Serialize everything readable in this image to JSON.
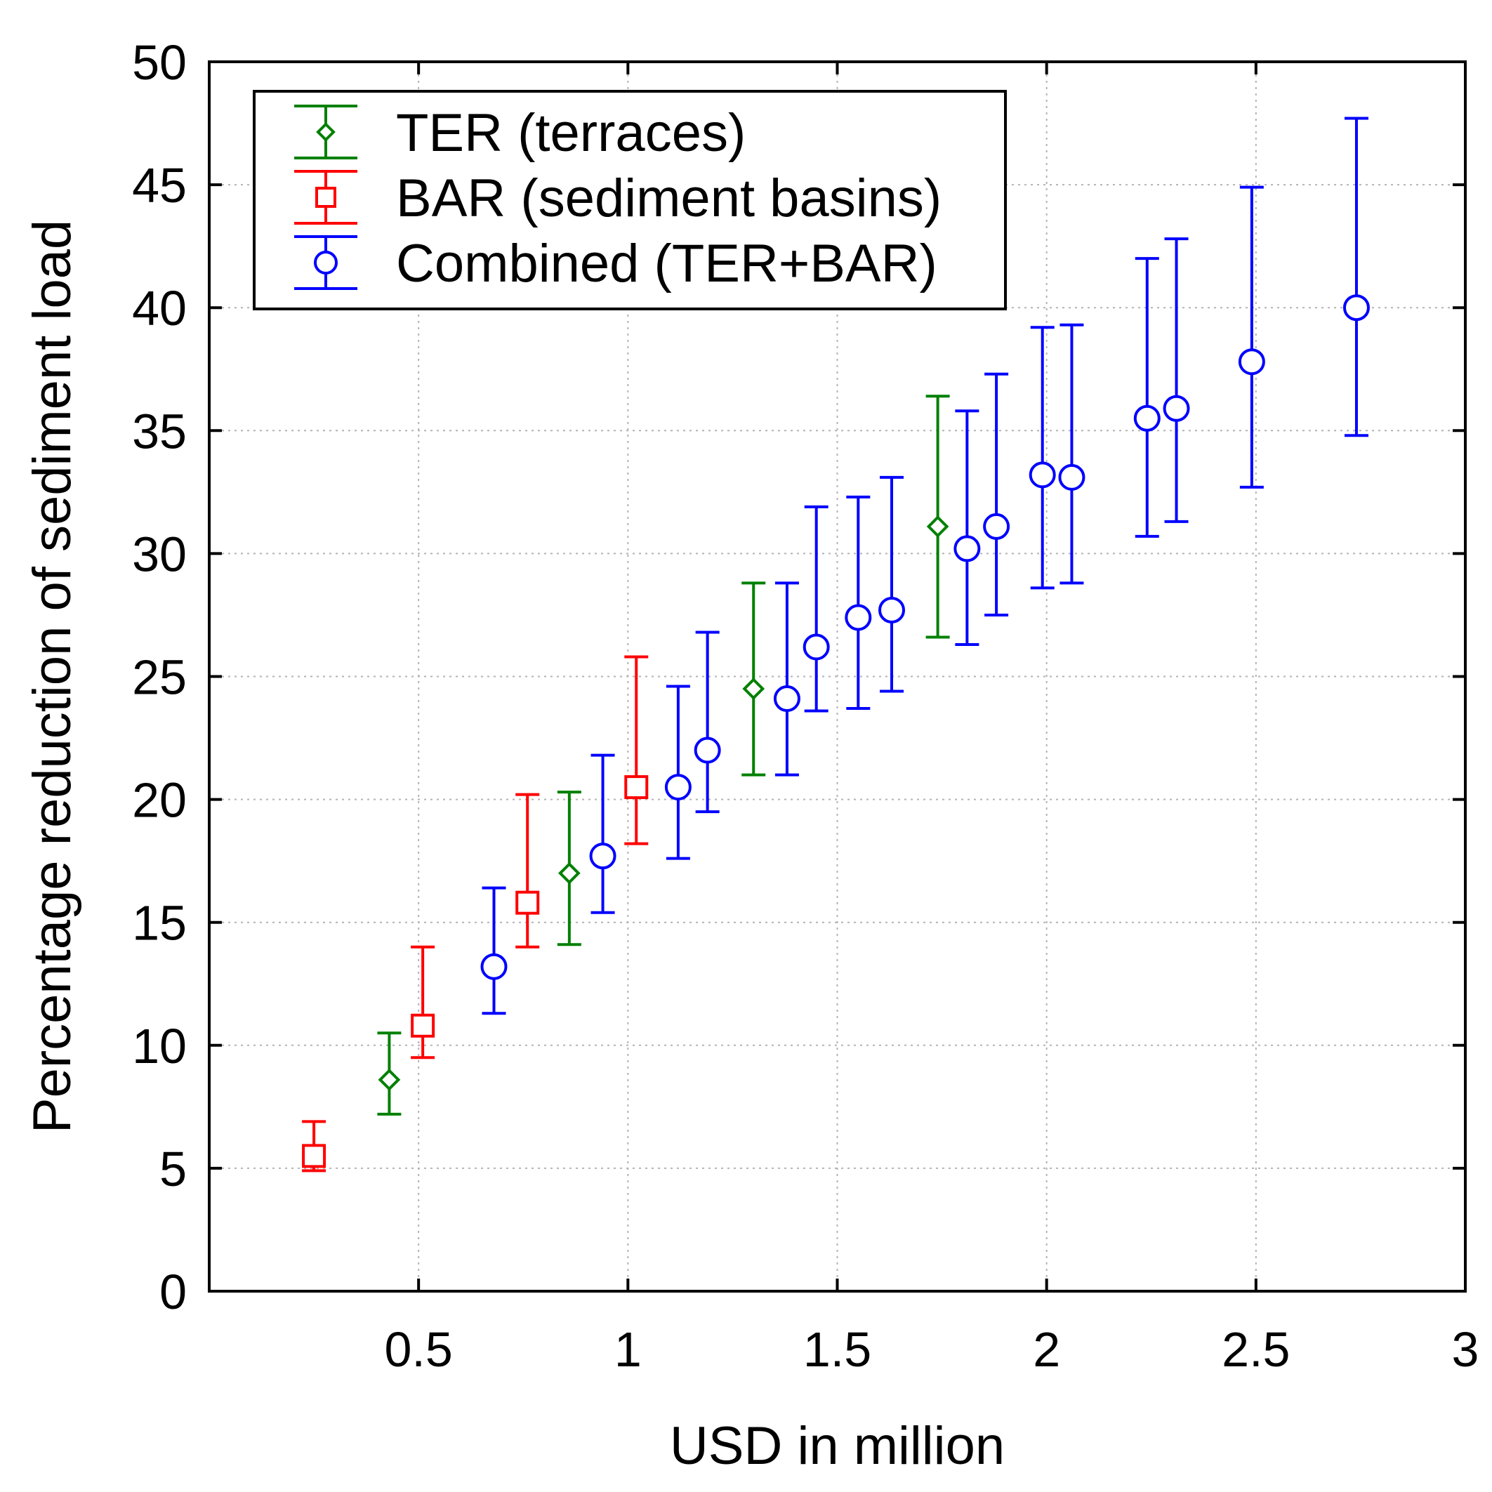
{
  "chart_data": {
    "type": "scatter",
    "title": "",
    "xlabel": "USD in million",
    "ylabel": "Percentage reduction of sediment load",
    "xlim": [
      0,
      3
    ],
    "ylim": [
      0,
      50
    ],
    "grid": true,
    "legend_position": "top-left",
    "xticks": [
      {
        "value": 0.5,
        "label": "0.5"
      },
      {
        "value": 1,
        "label": "1"
      },
      {
        "value": 1.5,
        "label": "1.5"
      },
      {
        "value": 2,
        "label": "2"
      },
      {
        "value": 2.5,
        "label": "2.5"
      },
      {
        "value": 3,
        "label": "3"
      }
    ],
    "yticks": [
      {
        "value": 0,
        "label": "0"
      },
      {
        "value": 5,
        "label": "5"
      },
      {
        "value": 10,
        "label": "10"
      },
      {
        "value": 15,
        "label": "15"
      },
      {
        "value": 20,
        "label": "20"
      },
      {
        "value": 25,
        "label": "25"
      },
      {
        "value": 30,
        "label": "30"
      },
      {
        "value": 35,
        "label": "35"
      },
      {
        "value": 40,
        "label": "40"
      },
      {
        "value": 45,
        "label": "45"
      },
      {
        "value": 50,
        "label": "50"
      }
    ],
    "series": [
      {
        "name": "TER (terraces)",
        "color": "#008000",
        "marker": "diamond",
        "points": [
          {
            "x": 0.43,
            "y": 8.6,
            "low": 7.2,
            "high": 10.5
          },
          {
            "x": 0.86,
            "y": 17.0,
            "low": 14.1,
            "high": 20.3
          },
          {
            "x": 1.3,
            "y": 24.5,
            "low": 21.0,
            "high": 28.8
          },
          {
            "x": 1.74,
            "y": 31.1,
            "low": 26.6,
            "high": 36.4
          }
        ]
      },
      {
        "name": "BAR (sediment basins)",
        "color": "#ff0000",
        "marker": "square",
        "points": [
          {
            "x": 0.25,
            "y": 5.5,
            "low": 4.9,
            "high": 6.9
          },
          {
            "x": 0.51,
            "y": 10.8,
            "low": 9.5,
            "high": 14.0
          },
          {
            "x": 0.76,
            "y": 15.8,
            "low": 14.0,
            "high": 20.2
          },
          {
            "x": 1.02,
            "y": 20.5,
            "low": 18.2,
            "high": 25.8
          }
        ]
      },
      {
        "name": "Combined (TER+BAR)",
        "color": "#0000ff",
        "marker": "circle",
        "points": [
          {
            "x": 0.68,
            "y": 13.2,
            "low": 11.3,
            "high": 16.4
          },
          {
            "x": 0.94,
            "y": 17.7,
            "low": 15.4,
            "high": 21.8
          },
          {
            "x": 1.12,
            "y": 20.5,
            "low": 17.6,
            "high": 24.6
          },
          {
            "x": 1.19,
            "y": 22.0,
            "low": 19.5,
            "high": 26.8
          },
          {
            "x": 1.38,
            "y": 24.1,
            "low": 21.0,
            "high": 28.8
          },
          {
            "x": 1.45,
            "y": 26.2,
            "low": 23.6,
            "high": 31.9
          },
          {
            "x": 1.55,
            "y": 27.4,
            "low": 23.7,
            "high": 32.3
          },
          {
            "x": 1.63,
            "y": 27.7,
            "low": 24.4,
            "high": 33.1
          },
          {
            "x": 1.81,
            "y": 30.2,
            "low": 26.3,
            "high": 35.8
          },
          {
            "x": 1.88,
            "y": 31.1,
            "low": 27.5,
            "high": 37.3
          },
          {
            "x": 1.99,
            "y": 33.2,
            "low": 28.6,
            "high": 39.2
          },
          {
            "x": 2.06,
            "y": 33.1,
            "low": 28.8,
            "high": 39.3
          },
          {
            "x": 2.24,
            "y": 35.5,
            "low": 30.7,
            "high": 42.0
          },
          {
            "x": 2.31,
            "y": 35.9,
            "low": 31.3,
            "high": 42.8
          },
          {
            "x": 2.49,
            "y": 37.8,
            "low": 32.7,
            "high": 44.9
          },
          {
            "x": 2.74,
            "y": 40.0,
            "low": 34.8,
            "high": 47.7
          }
        ]
      }
    ]
  }
}
